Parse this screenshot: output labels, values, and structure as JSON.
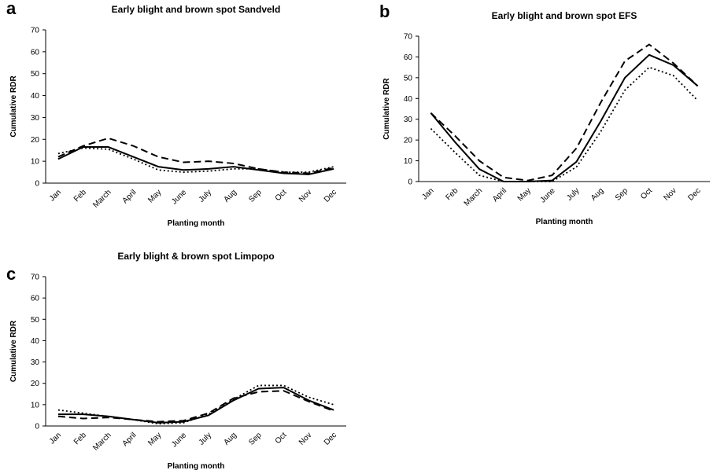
{
  "chart_data": [
    {
      "type": "line",
      "label": "a",
      "title": "Early blight and brown spot Sandveld",
      "x_label": "Planting month",
      "y_label": "Cumulative RDR",
      "categories": [
        "Jan",
        "Feb",
        "March",
        "April",
        "May",
        "June",
        "July",
        "Aug",
        "Sep",
        "Oct",
        "Nov",
        "Dec"
      ],
      "series": [
        {
          "color": "#000000",
          "dash": "solid",
          "values": [
            11,
            16.5,
            16.5,
            12,
            7.5,
            6,
            6.5,
            7.5,
            6,
            4.5,
            4,
            6.5
          ]
        },
        {
          "color": "#000000",
          "dash": "dashed",
          "values": [
            12,
            17,
            20.5,
            17,
            12,
            9.5,
            10,
            9,
            6.5,
            5,
            4.5,
            7
          ]
        },
        {
          "color": "#000000",
          "dash": "dotted",
          "values": [
            13.5,
            16,
            15.5,
            11,
            6,
            5,
            5.5,
            6.5,
            6.5,
            5,
            5,
            7.5
          ]
        }
      ],
      "ylim": [
        0,
        70
      ],
      "yticks": [
        0,
        10,
        20,
        30,
        40,
        50,
        60,
        70
      ]
    },
    {
      "type": "line",
      "label": "b",
      "title": "Early blight and brown spot EFS",
      "x_label": "Planting month",
      "y_label": "Cumulative RDR",
      "categories": [
        "Jan",
        "Feb",
        "March",
        "April",
        "May",
        "June",
        "July",
        "Aug",
        "Sep",
        "Oct",
        "Nov",
        "Dec"
      ],
      "series": [
        {
          "color": "#000000",
          "dash": "solid",
          "values": [
            33,
            19,
            6,
            0,
            0,
            0.5,
            9.5,
            29,
            50,
            61,
            56,
            46
          ]
        },
        {
          "color": "#000000",
          "dash": "dashed",
          "values": [
            33,
            22,
            10,
            2,
            0.5,
            3,
            16,
            38,
            58,
            66,
            57,
            46
          ]
        },
        {
          "color": "#000000",
          "dash": "dotted",
          "values": [
            25.5,
            14,
            3,
            0,
            0,
            0,
            7,
            24,
            44,
            55,
            51,
            39
          ]
        }
      ],
      "ylim": [
        0,
        70
      ],
      "yticks": [
        0,
        10,
        20,
        30,
        40,
        50,
        60,
        70
      ]
    },
    {
      "type": "line",
      "label": "c",
      "title": "Early blight & brown spot Limpopo",
      "x_label": "Planting month",
      "y_label": "Cumulative RDR",
      "categories": [
        "Jan",
        "Feb",
        "March",
        "April",
        "May",
        "June",
        "July",
        "Aug",
        "Sep",
        "Oct",
        "Nov",
        "Dec"
      ],
      "series": [
        {
          "color": "#000000",
          "dash": "solid",
          "values": [
            5.5,
            5.5,
            4.5,
            3,
            1.5,
            2,
            5,
            12,
            17.5,
            18,
            12,
            7.5
          ]
        },
        {
          "color": "#000000",
          "dash": "dashed",
          "values": [
            4.5,
            3.5,
            4,
            3,
            2,
            2.5,
            6,
            13,
            16,
            16.5,
            11.5,
            7
          ]
        },
        {
          "color": "#000000",
          "dash": "dotted",
          "values": [
            7.5,
            6,
            4.5,
            3,
            1,
            1.5,
            5.5,
            12.5,
            19,
            19,
            13.5,
            10
          ]
        }
      ],
      "ylim": [
        0,
        70
      ],
      "yticks": [
        0,
        10,
        20,
        30,
        40,
        50,
        60,
        70
      ]
    }
  ]
}
